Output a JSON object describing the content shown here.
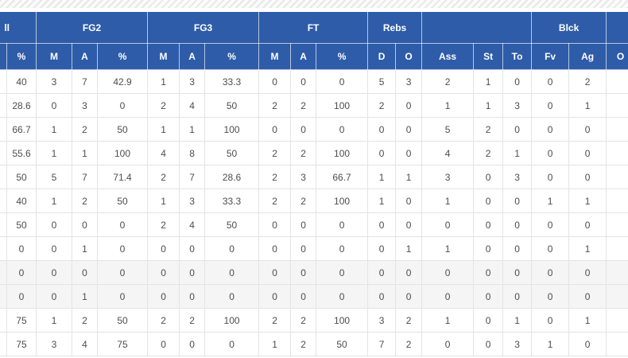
{
  "accent_color": "#2e5ca8",
  "table": {
    "groups": [
      {
        "label": "ll",
        "span": 2,
        "cut": "left"
      },
      {
        "label": "FG2",
        "span": 3
      },
      {
        "label": "FG3",
        "span": 3
      },
      {
        "label": "FT",
        "span": 3
      },
      {
        "label": "Rebs",
        "span": 2
      },
      {
        "label": "",
        "span": 3
      },
      {
        "label": "Blck",
        "span": 2
      },
      {
        "label": "",
        "span": 1,
        "cut": "right"
      }
    ],
    "columns": [
      "",
      "%",
      "M",
      "A",
      "%",
      "M",
      "A",
      "%",
      "M",
      "A",
      "%",
      "D",
      "O",
      "Ass",
      "St",
      "To",
      "Fv",
      "Ag",
      "O"
    ],
    "rows": [
      {
        "cells": [
          "",
          "40",
          "3",
          "7",
          "42.9",
          "1",
          "3",
          "33.3",
          "0",
          "0",
          "0",
          "5",
          "3",
          "2",
          "1",
          "0",
          "0",
          "2",
          ""
        ]
      },
      {
        "cells": [
          "",
          "28.6",
          "0",
          "3",
          "0",
          "2",
          "4",
          "50",
          "2",
          "2",
          "100",
          "2",
          "0",
          "1",
          "1",
          "3",
          "0",
          "1",
          ""
        ]
      },
      {
        "cells": [
          "",
          "66.7",
          "1",
          "2",
          "50",
          "1",
          "1",
          "100",
          "0",
          "0",
          "0",
          "0",
          "0",
          "5",
          "2",
          "0",
          "0",
          "0",
          ""
        ]
      },
      {
        "cells": [
          "",
          "55.6",
          "1",
          "1",
          "100",
          "4",
          "8",
          "50",
          "2",
          "2",
          "100",
          "0",
          "0",
          "4",
          "2",
          "1",
          "0",
          "0",
          ""
        ]
      },
      {
        "cells": [
          "",
          "50",
          "5",
          "7",
          "71.4",
          "2",
          "7",
          "28.6",
          "2",
          "3",
          "66.7",
          "1",
          "1",
          "3",
          "0",
          "3",
          "0",
          "0",
          ""
        ]
      },
      {
        "cells": [
          "",
          "40",
          "1",
          "2",
          "50",
          "1",
          "3",
          "33.3",
          "2",
          "2",
          "100",
          "1",
          "0",
          "1",
          "0",
          "0",
          "1",
          "1",
          ""
        ]
      },
      {
        "cells": [
          "",
          "50",
          "0",
          "0",
          "0",
          "2",
          "4",
          "50",
          "0",
          "0",
          "0",
          "0",
          "0",
          "0",
          "0",
          "0",
          "0",
          "0",
          ""
        ]
      },
      {
        "cells": [
          "",
          "0",
          "0",
          "1",
          "0",
          "0",
          "0",
          "0",
          "0",
          "0",
          "0",
          "0",
          "1",
          "1",
          "0",
          "0",
          "0",
          "1",
          ""
        ]
      },
      {
        "cells": [
          "",
          "0",
          "0",
          "0",
          "0",
          "0",
          "0",
          "0",
          "0",
          "0",
          "0",
          "0",
          "0",
          "0",
          "0",
          "0",
          "0",
          "0",
          ""
        ],
        "shaded": true
      },
      {
        "cells": [
          "",
          "0",
          "0",
          "1",
          "0",
          "0",
          "0",
          "0",
          "0",
          "0",
          "0",
          "0",
          "0",
          "0",
          "0",
          "0",
          "0",
          "0",
          ""
        ],
        "shaded": true
      },
      {
        "cells": [
          "",
          "75",
          "1",
          "2",
          "50",
          "2",
          "2",
          "100",
          "2",
          "2",
          "100",
          "3",
          "2",
          "1",
          "0",
          "1",
          "0",
          "1",
          ""
        ]
      },
      {
        "cells": [
          "",
          "75",
          "3",
          "4",
          "75",
          "0",
          "0",
          "0",
          "1",
          "2",
          "50",
          "7",
          "2",
          "0",
          "0",
          "3",
          "1",
          "0",
          ""
        ]
      }
    ]
  }
}
